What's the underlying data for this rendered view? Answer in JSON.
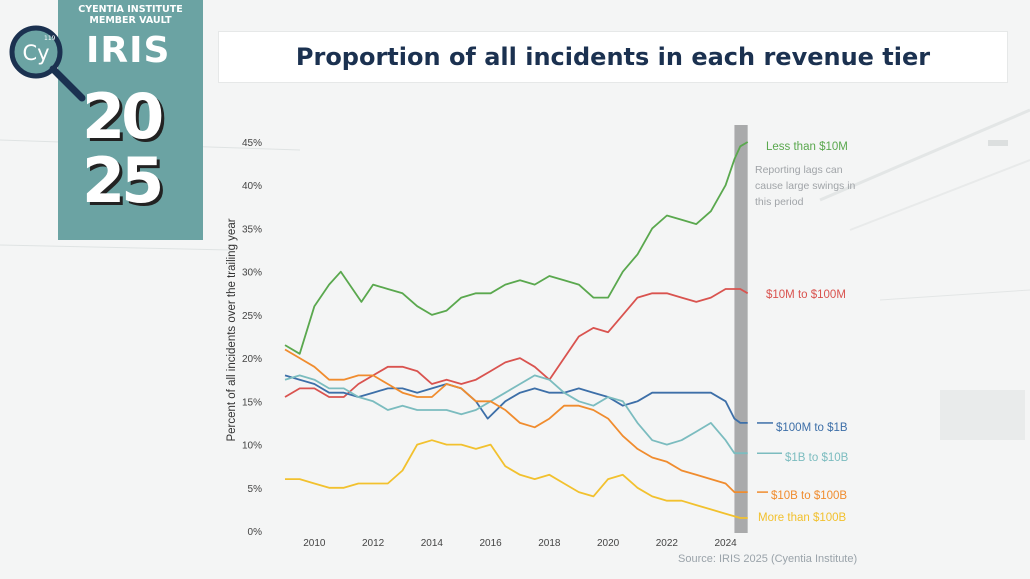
{
  "logo": {
    "line1": "CYENTIA INSTITUTE",
    "line2": "MEMBER VAULT",
    "brand": "IRIS",
    "year_top": "20",
    "year_bottom": "25",
    "badge": "Cy",
    "badge_number": "119",
    "color": "#6ba3a3"
  },
  "chart_data": {
    "type": "line",
    "title": "Proportion of all incidents in each revenue tier",
    "ylabel": "Percent of all incidents over the trailing year",
    "xlabel": "",
    "xlim": [
      2009,
      2025
    ],
    "ylim": [
      0,
      45
    ],
    "x_ticks": [
      "2010",
      "2012",
      "2014",
      "2016",
      "2018",
      "2020",
      "2022",
      "2024"
    ],
    "y_ticks": [
      "0%",
      "5%",
      "10%",
      "15%",
      "20%",
      "25%",
      "30%",
      "35%",
      "40%",
      "45%"
    ],
    "grid": false,
    "legend": "direct labels at line ends",
    "annotation": "Reporting lags can cause large swings in this period",
    "shaded_region": [
      2024.3,
      2024.75
    ],
    "source": "Source: IRIS 2025 (Cyentia Institute)",
    "series": [
      {
        "name": "Less than $10M",
        "color": "#5aa84e",
        "points": [
          [
            2009.0,
            21.5
          ],
          [
            2009.5,
            20.5
          ],
          [
            2010.0,
            26
          ],
          [
            2010.5,
            28.5
          ],
          [
            2010.9,
            30
          ],
          [
            2011.3,
            28
          ],
          [
            2011.6,
            26.5
          ],
          [
            2012.0,
            28.5
          ],
          [
            2012.5,
            28
          ],
          [
            2013.0,
            27.5
          ],
          [
            2013.5,
            26
          ],
          [
            2014.0,
            25
          ],
          [
            2014.5,
            25.5
          ],
          [
            2015.0,
            27
          ],
          [
            2015.5,
            27.5
          ],
          [
            2016.0,
            27.5
          ],
          [
            2016.5,
            28.5
          ],
          [
            2017.0,
            29
          ],
          [
            2017.5,
            28.5
          ],
          [
            2018.0,
            29.5
          ],
          [
            2018.5,
            29
          ],
          [
            2019.0,
            28.5
          ],
          [
            2019.5,
            27
          ],
          [
            2020.0,
            27
          ],
          [
            2020.5,
            30
          ],
          [
            2021.0,
            32
          ],
          [
            2021.5,
            35
          ],
          [
            2022.0,
            36.5
          ],
          [
            2022.5,
            36
          ],
          [
            2023.0,
            35.5
          ],
          [
            2023.5,
            37
          ],
          [
            2024.0,
            40
          ],
          [
            2024.3,
            43
          ],
          [
            2024.5,
            44.5
          ],
          [
            2024.75,
            45
          ]
        ]
      },
      {
        "name": "$10M to $100M",
        "color": "#d9534f",
        "points": [
          [
            2009.0,
            15.5
          ],
          [
            2009.5,
            16.5
          ],
          [
            2010.0,
            16.5
          ],
          [
            2010.5,
            15.5
          ],
          [
            2011.0,
            15.5
          ],
          [
            2011.5,
            17
          ],
          [
            2012.0,
            18
          ],
          [
            2012.5,
            19
          ],
          [
            2013.0,
            19
          ],
          [
            2013.5,
            18.5
          ],
          [
            2014.0,
            17
          ],
          [
            2014.5,
            17.5
          ],
          [
            2015.0,
            17
          ],
          [
            2015.5,
            17.5
          ],
          [
            2016.0,
            18.5
          ],
          [
            2016.5,
            19.5
          ],
          [
            2017.0,
            20
          ],
          [
            2017.5,
            19
          ],
          [
            2018.0,
            17.5
          ],
          [
            2018.5,
            20
          ],
          [
            2019.0,
            22.5
          ],
          [
            2019.5,
            23.5
          ],
          [
            2020.0,
            23
          ],
          [
            2020.5,
            25
          ],
          [
            2021.0,
            27
          ],
          [
            2021.5,
            27.5
          ],
          [
            2022.0,
            27.5
          ],
          [
            2022.5,
            27
          ],
          [
            2023.0,
            26.5
          ],
          [
            2023.5,
            27
          ],
          [
            2024.0,
            28
          ],
          [
            2024.5,
            28
          ],
          [
            2024.75,
            27.5
          ]
        ]
      },
      {
        "name": "$100M to $1B",
        "color": "#3d6fa8",
        "points": [
          [
            2009.0,
            18
          ],
          [
            2009.5,
            17.5
          ],
          [
            2010.0,
            17
          ],
          [
            2010.5,
            16
          ],
          [
            2011.0,
            16
          ],
          [
            2011.5,
            15.5
          ],
          [
            2012.0,
            16
          ],
          [
            2012.5,
            16.5
          ],
          [
            2013.0,
            16.5
          ],
          [
            2013.5,
            16
          ],
          [
            2014.0,
            16.5
          ],
          [
            2014.5,
            17
          ],
          [
            2015.0,
            16.5
          ],
          [
            2015.5,
            15
          ],
          [
            2015.9,
            13
          ],
          [
            2016.5,
            15
          ],
          [
            2017.0,
            16
          ],
          [
            2017.5,
            16.5
          ],
          [
            2018.0,
            16
          ],
          [
            2018.5,
            16
          ],
          [
            2019.0,
            16.5
          ],
          [
            2019.5,
            16
          ],
          [
            2020.0,
            15.5
          ],
          [
            2020.5,
            14.5
          ],
          [
            2021.0,
            15
          ],
          [
            2021.5,
            16
          ],
          [
            2022.0,
            16
          ],
          [
            2022.5,
            16
          ],
          [
            2023.0,
            16
          ],
          [
            2023.5,
            16
          ],
          [
            2024.0,
            15
          ],
          [
            2024.3,
            13
          ],
          [
            2024.5,
            12.5
          ],
          [
            2024.75,
            12.5
          ]
        ]
      },
      {
        "name": "$1B to $10B",
        "color": "#7bbcbf",
        "points": [
          [
            2009.0,
            17.5
          ],
          [
            2009.5,
            18
          ],
          [
            2010.0,
            17.5
          ],
          [
            2010.5,
            16.5
          ],
          [
            2011.0,
            16.5
          ],
          [
            2011.5,
            15.5
          ],
          [
            2012.0,
            15
          ],
          [
            2012.5,
            14
          ],
          [
            2013.0,
            14.5
          ],
          [
            2013.5,
            14
          ],
          [
            2014.0,
            14
          ],
          [
            2014.5,
            14
          ],
          [
            2015.0,
            13.5
          ],
          [
            2015.5,
            14
          ],
          [
            2016.0,
            15
          ],
          [
            2016.5,
            16
          ],
          [
            2017.0,
            17
          ],
          [
            2017.5,
            18
          ],
          [
            2018.0,
            17.5
          ],
          [
            2018.5,
            16
          ],
          [
            2019.0,
            15
          ],
          [
            2019.5,
            14.5
          ],
          [
            2020.0,
            15.5
          ],
          [
            2020.5,
            15
          ],
          [
            2021.0,
            12.5
          ],
          [
            2021.5,
            10.5
          ],
          [
            2022.0,
            10
          ],
          [
            2022.5,
            10.5
          ],
          [
            2023.0,
            11.5
          ],
          [
            2023.5,
            12.5
          ],
          [
            2024.0,
            10.5
          ],
          [
            2024.3,
            9
          ],
          [
            2024.5,
            9
          ],
          [
            2024.75,
            9
          ]
        ]
      },
      {
        "name": "$10B to $100B",
        "color": "#f08c2e",
        "points": [
          [
            2009.0,
            21
          ],
          [
            2009.5,
            20
          ],
          [
            2010.0,
            19
          ],
          [
            2010.5,
            17.5
          ],
          [
            2011.0,
            17.5
          ],
          [
            2011.5,
            18
          ],
          [
            2012.0,
            18
          ],
          [
            2012.5,
            17
          ],
          [
            2013.0,
            16
          ],
          [
            2013.5,
            15.5
          ],
          [
            2014.0,
            15.5
          ],
          [
            2014.5,
            17
          ],
          [
            2015.0,
            16.5
          ],
          [
            2015.5,
            15
          ],
          [
            2016.0,
            15
          ],
          [
            2016.5,
            14
          ],
          [
            2017.0,
            12.5
          ],
          [
            2017.5,
            12
          ],
          [
            2018.0,
            13
          ],
          [
            2018.5,
            14.5
          ],
          [
            2019.0,
            14.5
          ],
          [
            2019.5,
            14
          ],
          [
            2020.0,
            13
          ],
          [
            2020.5,
            11
          ],
          [
            2021.0,
            9.5
          ],
          [
            2021.5,
            8.5
          ],
          [
            2022.0,
            8
          ],
          [
            2022.5,
            7
          ],
          [
            2023.0,
            6.5
          ],
          [
            2023.5,
            6
          ],
          [
            2024.0,
            5.5
          ],
          [
            2024.3,
            4.5
          ],
          [
            2024.5,
            4.5
          ],
          [
            2024.75,
            4.5
          ]
        ]
      },
      {
        "name": "More than $100B",
        "color": "#f2c12e",
        "points": [
          [
            2009.0,
            6
          ],
          [
            2009.5,
            6
          ],
          [
            2010.0,
            5.5
          ],
          [
            2010.5,
            5
          ],
          [
            2011.0,
            5
          ],
          [
            2011.5,
            5.5
          ],
          [
            2012.0,
            5.5
          ],
          [
            2012.5,
            5.5
          ],
          [
            2013.0,
            7
          ],
          [
            2013.5,
            10
          ],
          [
            2014.0,
            10.5
          ],
          [
            2014.5,
            10
          ],
          [
            2015.0,
            10
          ],
          [
            2015.5,
            9.5
          ],
          [
            2016.0,
            10
          ],
          [
            2016.5,
            7.5
          ],
          [
            2017.0,
            6.5
          ],
          [
            2017.5,
            6
          ],
          [
            2018.0,
            6.5
          ],
          [
            2018.5,
            5.5
          ],
          [
            2019.0,
            4.5
          ],
          [
            2019.5,
            4
          ],
          [
            2020.0,
            6
          ],
          [
            2020.5,
            6.5
          ],
          [
            2021.0,
            5
          ],
          [
            2021.5,
            4
          ],
          [
            2022.0,
            3.5
          ],
          [
            2022.5,
            3.5
          ],
          [
            2023.0,
            3
          ],
          [
            2023.5,
            2.5
          ],
          [
            2024.0,
            2
          ],
          [
            2024.5,
            1.5
          ],
          [
            2024.75,
            1.5
          ]
        ]
      }
    ]
  }
}
